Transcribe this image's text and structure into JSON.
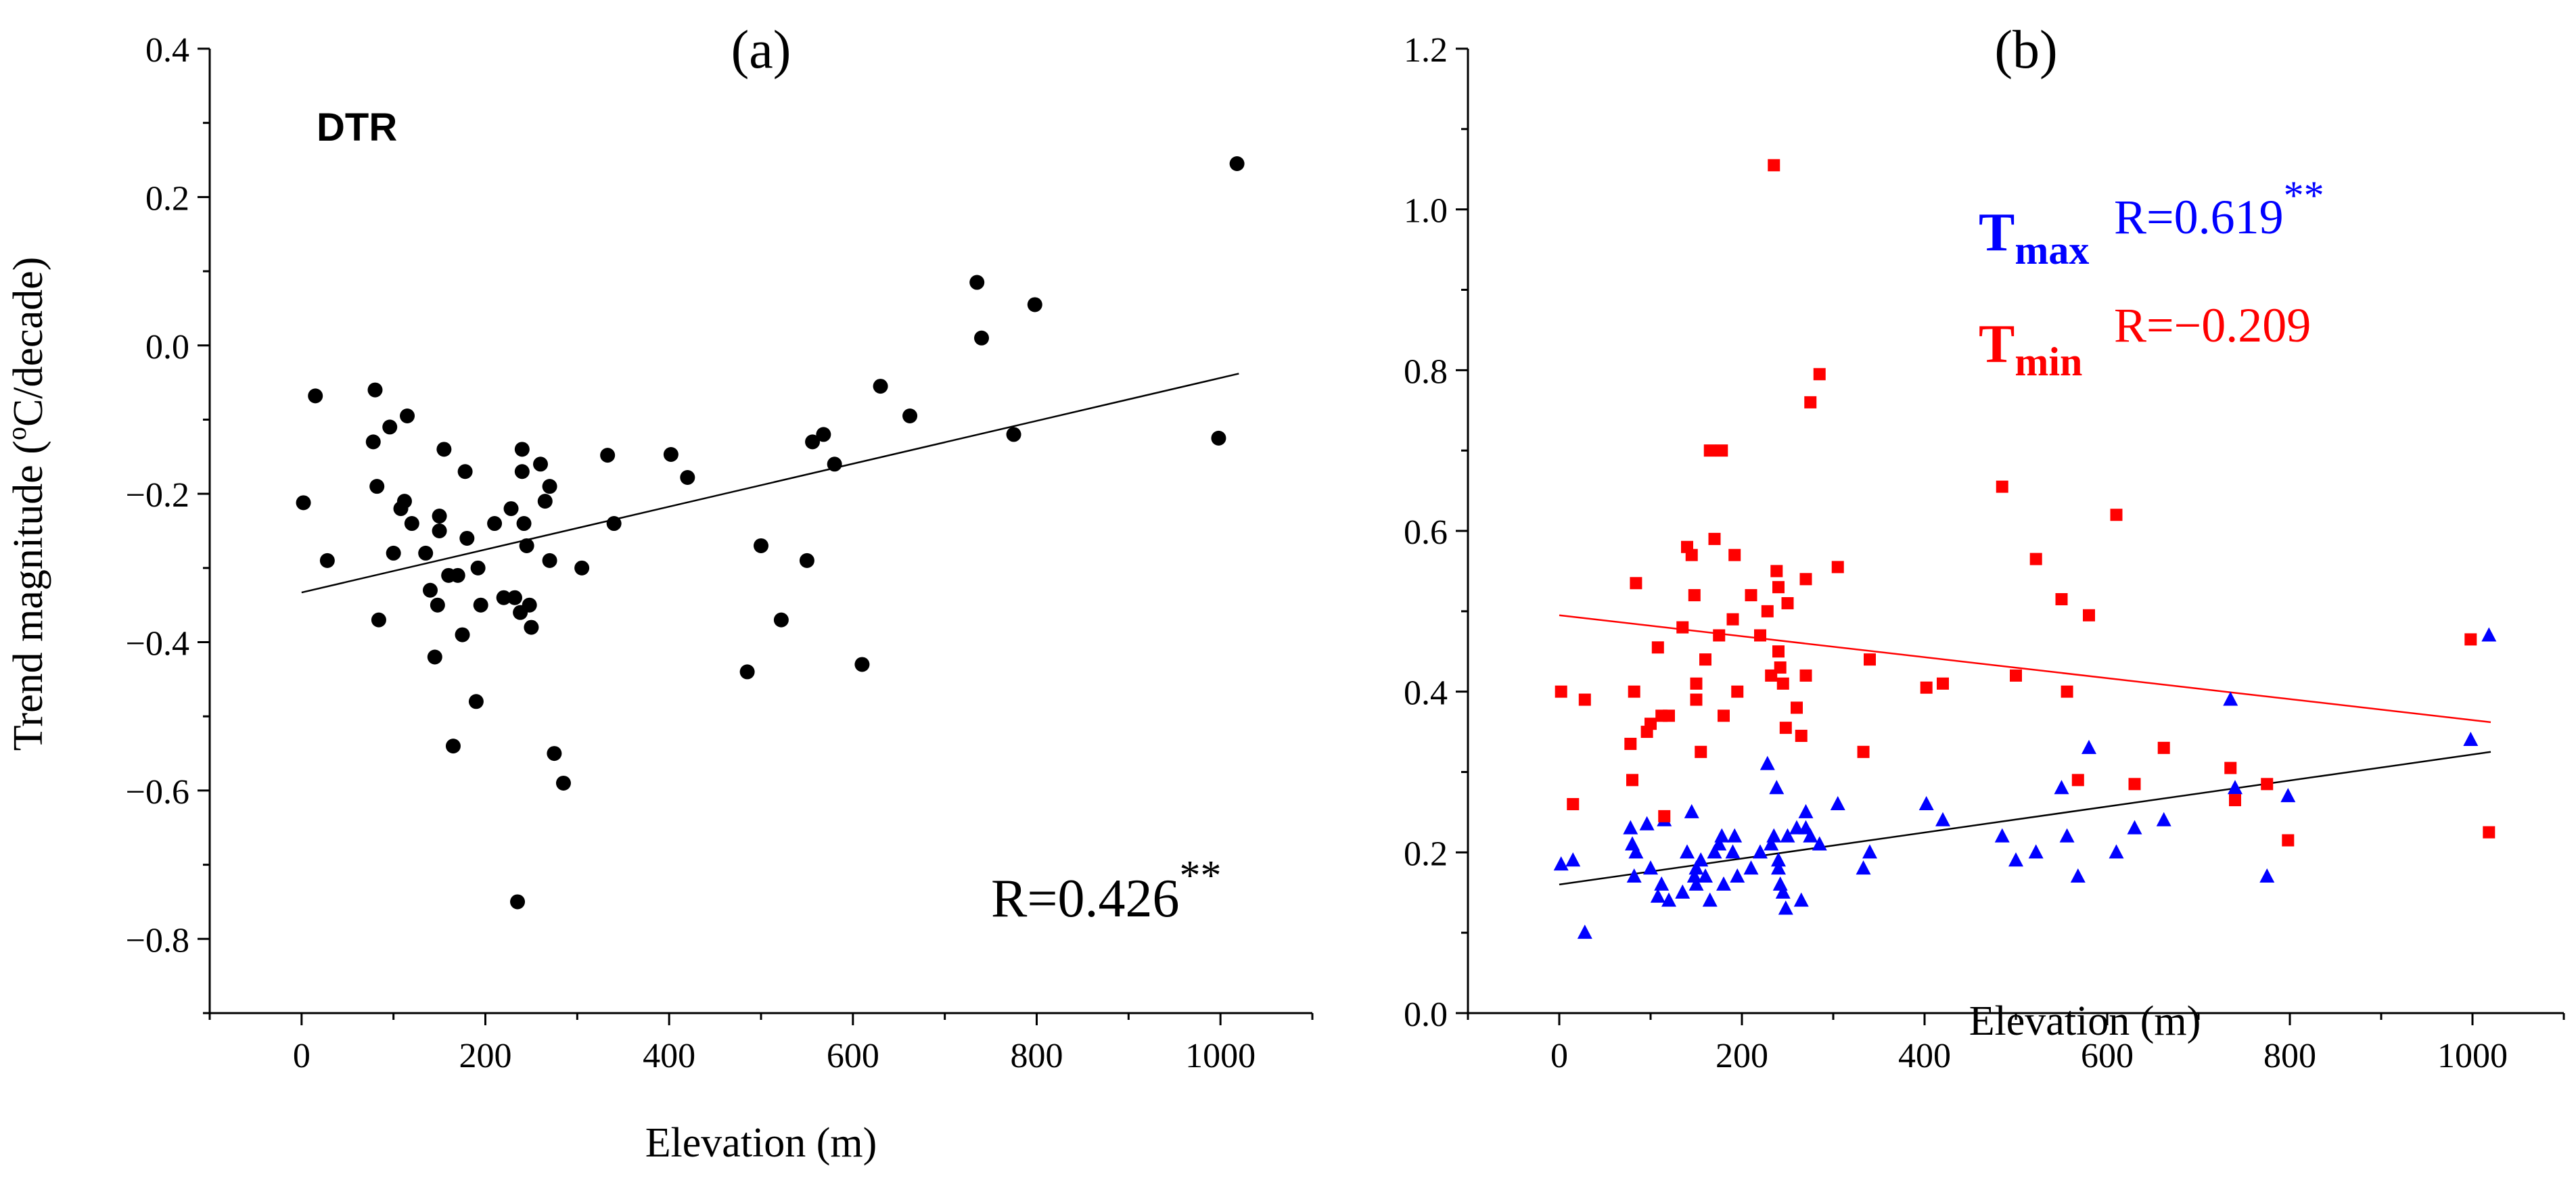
{
  "chart_data": [
    {
      "panel": "(a)",
      "type": "scatter",
      "title": "(a)",
      "label": "DTR",
      "xlabel": "Elevation (m)",
      "ylabel": "Trend magnitude (°C/decade)",
      "ylabel_parts": [
        "Trend magnitude (",
        "o",
        "C/decade)"
      ],
      "xlim": [
        -100,
        1100
      ],
      "ylim": [
        -0.9,
        0.4
      ],
      "xticks": [
        0,
        200,
        400,
        600,
        800,
        1000
      ],
      "xtick_labels": [
        "0",
        "200",
        "400",
        "600",
        "800",
        "1000"
      ],
      "yticks": [
        -0.8,
        -0.6,
        -0.4,
        -0.2,
        0.0,
        0.2,
        0.4
      ],
      "ytick_labels": [
        "−0.8",
        "−0.6",
        "−0.4",
        "−0.2",
        "0.0",
        "0.2",
        "0.4"
      ],
      "annotation": "R=0.426",
      "annotation_sup": "**",
      "colors": {
        "points": "#000000",
        "fit": "#000000"
      },
      "series": [
        {
          "name": "DTR",
          "marker": "circle",
          "color": "#000000",
          "x": [
            2,
            15,
            28,
            78,
            80,
            82,
            84,
            96,
            100,
            108,
            112,
            115,
            120,
            135,
            140,
            145,
            148,
            150,
            150,
            155,
            160,
            165,
            170,
            175,
            178,
            180,
            190,
            192,
            195,
            210,
            220,
            228,
            232,
            235,
            238,
            240,
            240,
            242,
            245,
            248,
            250,
            260,
            265,
            270,
            270,
            275,
            285,
            305,
            333,
            340,
            402,
            420,
            485,
            500,
            522,
            550,
            556,
            568,
            580,
            610,
            630,
            662,
            735,
            740,
            775,
            798,
            998,
            1018
          ],
          "y": [
            -0.212,
            -0.068,
            -0.29,
            -0.13,
            -0.06,
            -0.19,
            -0.37,
            -0.11,
            -0.28,
            -0.22,
            -0.21,
            -0.095,
            -0.24,
            -0.28,
            -0.33,
            -0.42,
            -0.35,
            -0.25,
            -0.23,
            -0.14,
            -0.31,
            -0.54,
            -0.31,
            -0.39,
            -0.17,
            -0.26,
            -0.48,
            -0.3,
            -0.35,
            -0.24,
            -0.34,
            -0.22,
            -0.34,
            -0.75,
            -0.36,
            -0.14,
            -0.17,
            -0.24,
            -0.27,
            -0.35,
            -0.38,
            -0.16,
            -0.21,
            -0.19,
            -0.29,
            -0.55,
            -0.59,
            -0.3,
            -0.148,
            -0.24,
            -0.147,
            -0.178,
            -0.44,
            -0.27,
            -0.37,
            -0.29,
            -0.13,
            -0.12,
            -0.16,
            -0.43,
            -0.055,
            -0.095,
            0.085,
            0.01,
            -0.12,
            0.055,
            -0.125,
            0.245
          ]
        }
      ],
      "fit": {
        "x": [
          0,
          1020
        ],
        "y": [
          -0.333,
          -0.038
        ],
        "color": "#000000"
      }
    },
    {
      "panel": "(b)",
      "type": "scatter",
      "title": "(b)",
      "xlabel": "Elevation (m)",
      "ylabel": "",
      "xlim": [
        -100,
        1100
      ],
      "ylim": [
        0.0,
        1.2
      ],
      "xticks": [
        0,
        200,
        400,
        600,
        800,
        1000
      ],
      "xtick_labels": [
        "0",
        "200",
        "400",
        "600",
        "800",
        "1000"
      ],
      "yticks": [
        0.0,
        0.2,
        0.4,
        0.6,
        0.8,
        1.0,
        1.2
      ],
      "ytick_labels": [
        "0.0",
        "0.2",
        "0.4",
        "0.6",
        "0.8",
        "1.0",
        "1.2"
      ],
      "colors": {
        "tmax": "#0000ff",
        "tmin": "#ff0000",
        "tmax_fit": "#000000",
        "tmin_fit": "#ff0000"
      },
      "legend": [
        {
          "name": "T",
          "sub": "max",
          "r": "R=0.619",
          "sup": "**",
          "color": "#0000ff"
        },
        {
          "name": "T",
          "sub": "min",
          "r": "R=−0.209",
          "sup": "",
          "color": "#ff0000"
        }
      ],
      "series": [
        {
          "name": "Tmax",
          "marker": "triangle",
          "color": "#0000ff",
          "x": [
            2,
            15,
            28,
            78,
            80,
            82,
            84,
            96,
            100,
            108,
            112,
            115,
            120,
            135,
            140,
            145,
            148,
            150,
            150,
            155,
            160,
            165,
            170,
            175,
            178,
            180,
            190,
            192,
            195,
            210,
            220,
            228,
            232,
            235,
            238,
            240,
            240,
            242,
            245,
            248,
            250,
            260,
            265,
            270,
            270,
            275,
            285,
            305,
            333,
            340,
            402,
            420,
            485,
            500,
            522,
            550,
            556,
            568,
            580,
            610,
            630,
            662,
            735,
            740,
            775,
            798,
            998,
            1018
          ],
          "y": [
            0.185,
            0.19,
            0.1,
            0.23,
            0.21,
            0.17,
            0.2,
            0.235,
            0.18,
            0.145,
            0.16,
            0.24,
            0.14,
            0.15,
            0.2,
            0.25,
            0.17,
            0.16,
            0.18,
            0.19,
            0.17,
            0.14,
            0.2,
            0.21,
            0.22,
            0.16,
            0.2,
            0.22,
            0.17,
            0.18,
            0.2,
            0.31,
            0.21,
            0.22,
            0.28,
            0.19,
            0.18,
            0.16,
            0.15,
            0.13,
            0.22,
            0.23,
            0.14,
            0.25,
            0.23,
            0.22,
            0.21,
            0.26,
            0.18,
            0.2,
            0.26,
            0.24,
            0.22,
            0.19,
            0.2,
            0.28,
            0.22,
            0.17,
            0.33,
            0.2,
            0.23,
            0.24,
            0.39,
            0.28,
            0.17,
            0.27,
            0.34,
            0.47
          ]
        },
        {
          "name": "Tmin",
          "marker": "square",
          "color": "#ff0000",
          "x": [
            2,
            15,
            28,
            78,
            80,
            82,
            84,
            96,
            100,
            108,
            112,
            115,
            120,
            135,
            140,
            145,
            148,
            150,
            150,
            155,
            160,
            165,
            170,
            175,
            178,
            180,
            190,
            192,
            195,
            210,
            220,
            228,
            232,
            235,
            238,
            240,
            240,
            242,
            245,
            248,
            250,
            260,
            265,
            270,
            270,
            275,
            285,
            305,
            333,
            340,
            402,
            420,
            485,
            500,
            522,
            550,
            556,
            568,
            580,
            610,
            630,
            662,
            735,
            740,
            775,
            798,
            998,
            1018
          ],
          "y": [
            0.4,
            0.26,
            0.39,
            0.335,
            0.29,
            0.4,
            0.535,
            0.35,
            0.36,
            0.455,
            0.37,
            0.245,
            0.37,
            0.48,
            0.58,
            0.57,
            0.52,
            0.41,
            0.39,
            0.325,
            0.44,
            0.7,
            0.59,
            0.47,
            0.7,
            0.37,
            0.49,
            0.57,
            0.4,
            0.52,
            0.47,
            0.5,
            0.42,
            1.055,
            0.55,
            0.53,
            0.45,
            0.43,
            0.41,
            0.355,
            0.51,
            0.38,
            0.345,
            0.54,
            0.42,
            0.76,
            0.795,
            0.555,
            0.325,
            0.44,
            0.405,
            0.41,
            0.655,
            0.42,
            0.565,
            0.515,
            0.4,
            0.29,
            0.495,
            0.62,
            0.285,
            0.33,
            0.305,
            0.265,
            0.285,
            0.215,
            0.465,
            0.225
          ]
        }
      ],
      "fits": [
        {
          "name": "Tmax fit",
          "x": [
            0,
            1020
          ],
          "y": [
            0.16,
            0.325
          ],
          "color": "#000000"
        },
        {
          "name": "Tmin fit",
          "x": [
            0,
            1020
          ],
          "y": [
            0.495,
            0.362
          ],
          "color": "#ff0000"
        }
      ]
    }
  ]
}
